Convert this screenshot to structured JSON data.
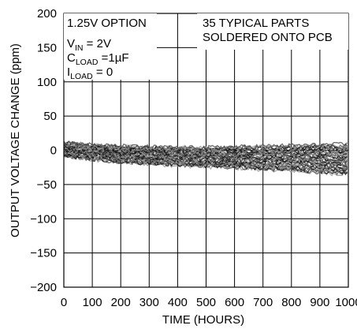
{
  "chart_data": {
    "type": "line",
    "xlabel": "TIME (HOURS)",
    "ylabel": "OUTPUT VOLTAGE CHANGE (ppm)",
    "xlim": [
      0,
      1000
    ],
    "ylim": [
      -200,
      200
    ],
    "x_ticks": [
      0,
      100,
      200,
      300,
      400,
      500,
      600,
      700,
      800,
      900,
      1000
    ],
    "x_tick_labels": [
      "0",
      "100",
      "200",
      "300",
      "400",
      "500",
      "600",
      "700",
      "800",
      "900",
      "1000"
    ],
    "y_ticks": [
      200,
      150,
      100,
      50,
      0,
      -50,
      -100,
      -150,
      -200
    ],
    "y_tick_labels": [
      "200",
      "150",
      "100",
      "50",
      "0",
      "−50",
      "−100",
      "−150",
      "−200"
    ],
    "grid": true,
    "num_series": 35,
    "series_envelope": {
      "x": [
        0,
        50,
        100,
        200,
        300,
        400,
        500,
        600,
        700,
        800,
        900,
        1000
      ],
      "upper": [
        12,
        10,
        8,
        6,
        5,
        4,
        4,
        5,
        6,
        7,
        8,
        9
      ],
      "center": [
        2,
        0,
        -2,
        -4,
        -6,
        -7,
        -8,
        -9,
        -10,
        -11,
        -12,
        -13
      ],
      "lower": [
        -8,
        -12,
        -14,
        -18,
        -20,
        -22,
        -24,
        -26,
        -28,
        -30,
        -33,
        -35
      ]
    },
    "annotations": {
      "left_block": {
        "line1": "1.25V OPTION",
        "line2_main": "V",
        "line2_sub": "IN",
        "line2_rest": " = 2V",
        "line3_main": "C",
        "line3_sub": "LOAD",
        "line3_rest": " =1µF",
        "line4_main": "I",
        "line4_sub": "LOAD",
        "line4_rest": " = 0"
      },
      "right_block": {
        "line1": "35 TYPICAL PARTS",
        "line2": "SOLDERED ONTO PCB"
      }
    },
    "colors": {
      "grid": "#000000",
      "series_dark": "#111111",
      "series_mid": "#555555",
      "series_light": "#9a9a9a"
    }
  }
}
